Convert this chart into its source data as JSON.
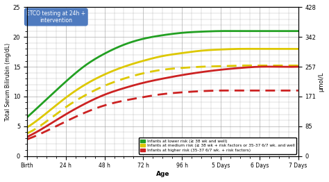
{
  "ylabel_left": "Total Serum Bilirubin (mg/dL)",
  "ylabel_right": "μmol/L",
  "xlabel": "Age",
  "xtick_labels": [
    "Birth",
    "24 h",
    "48 h",
    "72 h",
    "96 h",
    "5 Days",
    "6 Days",
    "7 Days"
  ],
  "yticks_left": [
    0,
    5,
    10,
    15,
    20,
    25
  ],
  "yticks_right_vals": [
    0,
    85,
    171,
    257,
    342,
    428
  ],
  "annotation_text": "ETCO testing at 24h +\nintervention",
  "annotation_box_color": "#4f7bbf",
  "x_hours": [
    0,
    12,
    24,
    36,
    48,
    60,
    72,
    84,
    96,
    108,
    120,
    132,
    144,
    156,
    168
  ],
  "green_solid": [
    6.5,
    9.5,
    12.5,
    15.2,
    17.2,
    18.7,
    19.7,
    20.3,
    20.7,
    20.9,
    21.0,
    21.0,
    21.0,
    21.0,
    21.0
  ],
  "yellow_solid": [
    4.8,
    7.2,
    9.8,
    12.0,
    13.7,
    15.0,
    16.0,
    16.8,
    17.3,
    17.7,
    17.9,
    18.0,
    18.0,
    18.0,
    18.0
  ],
  "yellow_dashed": [
    3.8,
    5.8,
    8.2,
    10.2,
    11.8,
    13.0,
    13.9,
    14.5,
    14.8,
    15.0,
    15.1,
    15.2,
    15.2,
    15.2,
    15.2
  ],
  "red_solid": [
    3.2,
    5.0,
    7.0,
    8.8,
    10.3,
    11.4,
    12.3,
    13.0,
    13.6,
    14.1,
    14.5,
    14.8,
    15.0,
    15.0,
    15.0
  ],
  "red_dashed": [
    2.8,
    4.2,
    5.8,
    7.3,
    8.5,
    9.3,
    9.9,
    10.4,
    10.7,
    10.9,
    11.0,
    11.0,
    11.0,
    11.0,
    11.0
  ],
  "green_color": "#22a022",
  "yellow_color": "#ddc800",
  "red_color": "#cc2222",
  "arrow_color": "#3a6aaa",
  "bg_color": "#ffffff",
  "grid_color": "#999999",
  "lw": 2.0,
  "legend_items": [
    {
      "label": "Infants at lower risk (≥ 38 wk and well)",
      "color": "#22a022"
    },
    {
      "label": "Infants at medium risk (≥ 38 wk + risk factors or 35-37 6/7 wk. and well",
      "color": "#ddc800"
    },
    {
      "label": "Infants at higher risk (35-37 6/7 wk. + risk factors)",
      "color": "#cc2222"
    }
  ]
}
